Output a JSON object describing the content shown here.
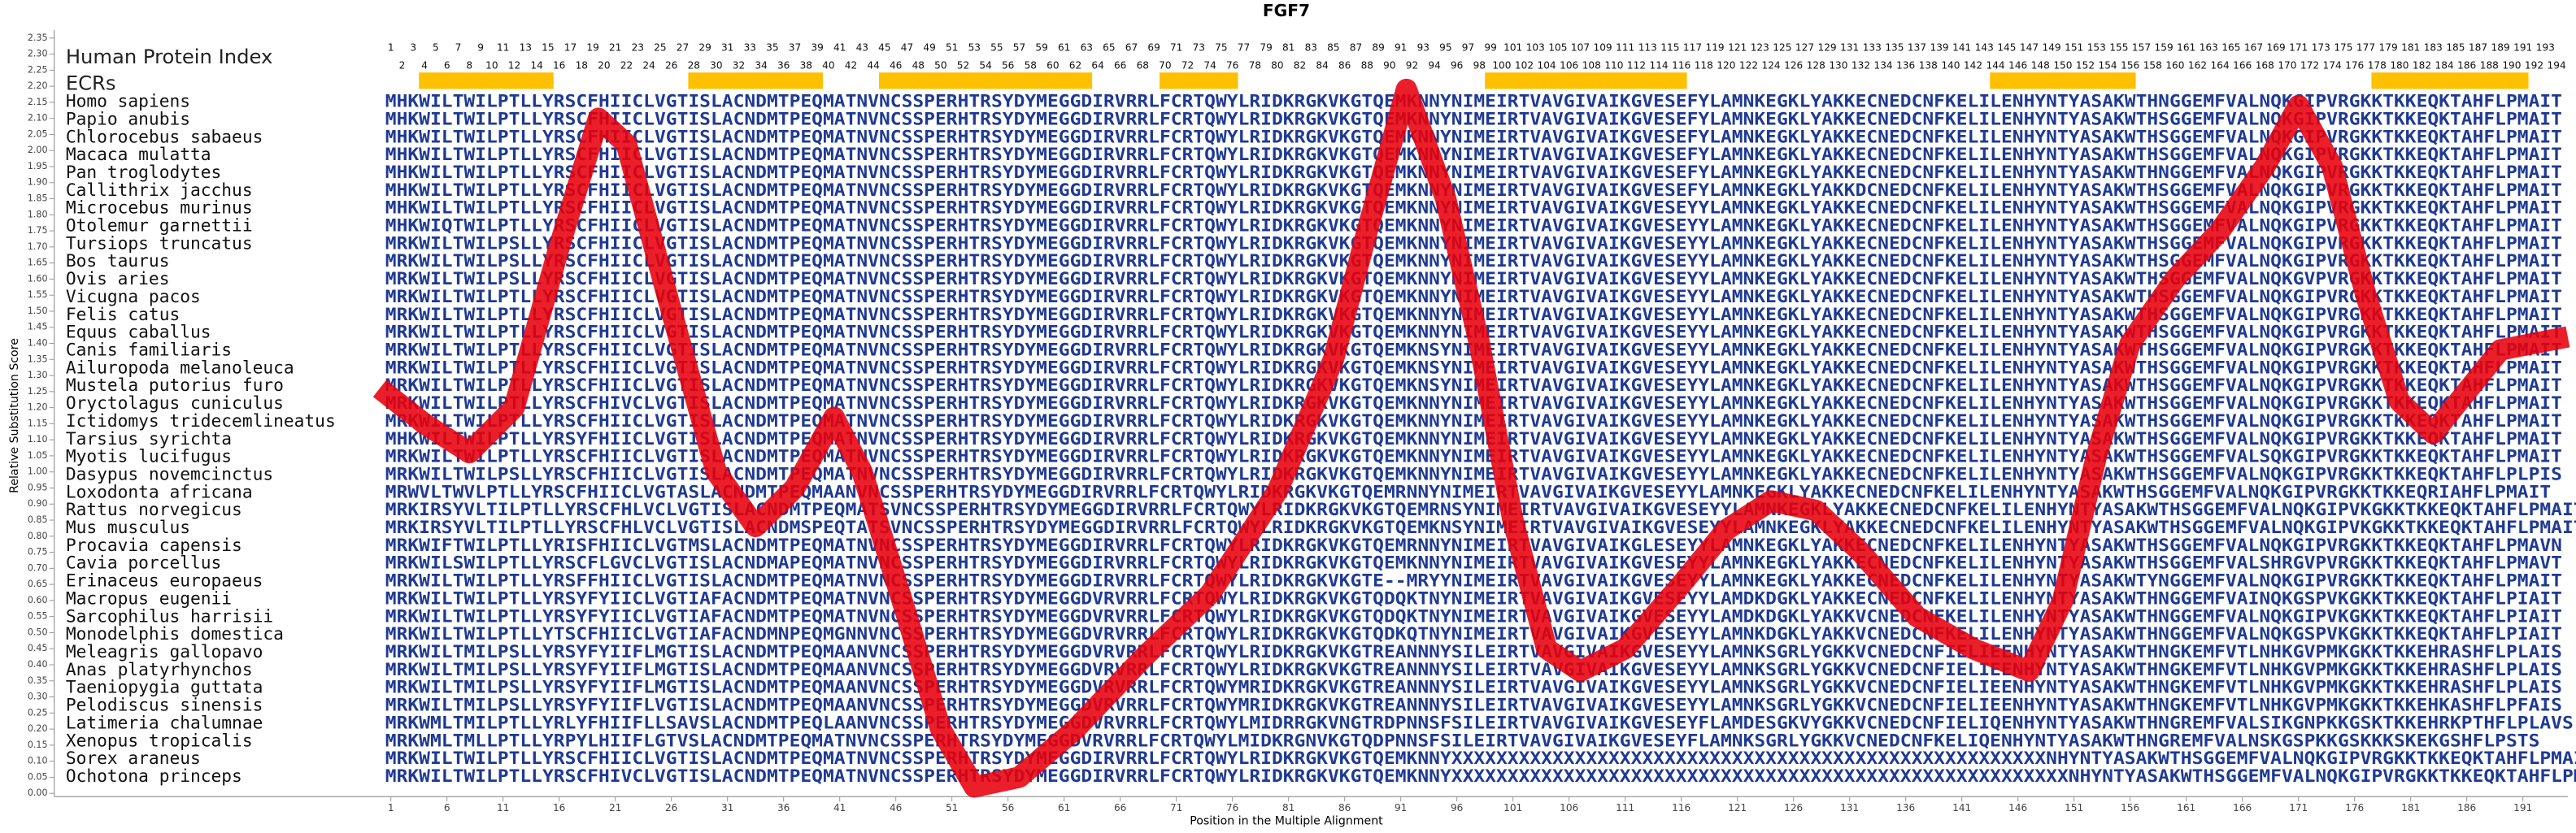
{
  "chart_data": {
    "type": "alignment-line",
    "title": "FGF7",
    "ylabel": "Relative Substitution Score",
    "xlabel": "Position in the Multiple Alignment",
    "index_label": "Human Protein Index",
    "ecr_label": "ECRs",
    "xlim": [
      -29,
      195
    ],
    "ylim": [
      0,
      2.35
    ],
    "xticks": [
      1,
      6,
      11,
      16,
      21,
      26,
      31,
      36,
      41,
      46,
      51,
      56,
      61,
      66,
      71,
      76,
      81,
      86,
      91,
      96,
      101,
      106,
      111,
      116,
      121,
      126,
      131,
      136,
      141,
      146,
      151,
      156,
      161,
      166,
      171,
      176,
      181,
      186,
      191
    ],
    "yticks": [
      {
        "value": 0,
        "label": "0.00"
      },
      0.05,
      {
        "value": 0.1,
        "label": "0.10"
      },
      0.15,
      {
        "value": 0.2,
        "label": "0.20"
      },
      0.25,
      {
        "value": 0.3,
        "label": "0.30"
      },
      0.35,
      {
        "value": 0.4,
        "label": "0.40"
      },
      0.45,
      {
        "value": 0.5,
        "label": "0.50"
      },
      0.55,
      {
        "value": 0.6,
        "label": "0.60"
      },
      0.65,
      {
        "value": 0.7,
        "label": "0.70"
      },
      0.75,
      {
        "value": 0.8,
        "label": "0.80"
      },
      0.85,
      {
        "value": 0.9,
        "label": "0.90"
      },
      0.95,
      {
        "value": 1,
        "label": "1.00"
      },
      1.05,
      {
        "value": 1.1,
        "label": "1.10"
      },
      1.15,
      {
        "value": 1.2,
        "label": "1.20"
      },
      1.25,
      {
        "value": 1.3,
        "label": "1.30"
      },
      1.35,
      {
        "value": 1.4,
        "label": "1.40"
      },
      1.45,
      {
        "value": 1.5,
        "label": "1.50"
      },
      1.55,
      {
        "value": 1.6,
        "label": "1.60"
      },
      1.65,
      {
        "value": 1.7,
        "label": "1.70"
      },
      1.75,
      {
        "value": 1.8,
        "label": "1.80"
      },
      1.85,
      {
        "value": 1.9,
        "label": "1.90"
      },
      1.95,
      {
        "value": 2,
        "label": "2.00"
      },
      2.05,
      {
        "value": 2.1,
        "label": "2.10"
      },
      2.15,
      {
        "value": 2.2,
        "label": "2.20"
      },
      2.25,
      {
        "value": 2.3,
        "label": "2.30"
      },
      2.35
    ],
    "protein_index": [
      1,
      2,
      3,
      4,
      5,
      6,
      7,
      8,
      9,
      10,
      11,
      12,
      13,
      14,
      15,
      16,
      17,
      18,
      19,
      20,
      21,
      22,
      23,
      24,
      25,
      26,
      27,
      28,
      29,
      30,
      31,
      32,
      33,
      34,
      35,
      36,
      37,
      38,
      39,
      40,
      41,
      42,
      43,
      44,
      45,
      46,
      47,
      48,
      49,
      50,
      51,
      52,
      53,
      54,
      55,
      56,
      57,
      58,
      59,
      60,
      61,
      62,
      63,
      64,
      65,
      66,
      67,
      68,
      69,
      70,
      71,
      72,
      73,
      74,
      75,
      76,
      77,
      78,
      79,
      80,
      81,
      82,
      83,
      84,
      85,
      86,
      87,
      88,
      89,
      90,
      91,
      92,
      93,
      94,
      95,
      96,
      97,
      98,
      99,
      100,
      101,
      102,
      103,
      104,
      105,
      106,
      107,
      108,
      109,
      110,
      111,
      112,
      113,
      114,
      115,
      116,
      117,
      118,
      119,
      120,
      121,
      122,
      123,
      124,
      125,
      126,
      127,
      128,
      129,
      130,
      131,
      132,
      133,
      134,
      135,
      136,
      137,
      138,
      139,
      140,
      141,
      142,
      143,
      144,
      145,
      146,
      147,
      148,
      149,
      150,
      151,
      152,
      153,
      154,
      155,
      156,
      157,
      158,
      159,
      160,
      161,
      162,
      163,
      164,
      165,
      166,
      167,
      168,
      169,
      170,
      171,
      172,
      173,
      174,
      175,
      176,
      177,
      178,
      179,
      180,
      181,
      182,
      183,
      184,
      185,
      186,
      187,
      188,
      189,
      190,
      191,
      192,
      193,
      194
    ],
    "ecrs": [
      [
        4,
        15
      ],
      [
        28,
        39
      ],
      [
        45,
        63
      ],
      [
        70,
        76
      ],
      [
        99,
        116
      ],
      [
        144,
        156
      ],
      [
        178,
        191
      ]
    ],
    "ecr_color": "#ffc000",
    "sequence_color": "#1f3a93",
    "curve": {
      "color": "#e8000b",
      "x": [
        0,
        4,
        8,
        12,
        16,
        19.5,
        22,
        26,
        30,
        33.5,
        37,
        40.5,
        43,
        47,
        50,
        53,
        57,
        62,
        68,
        74,
        80,
        85,
        88,
        91.5,
        95,
        98,
        101,
        104,
        107,
        111,
        116,
        120,
        124,
        128,
        132,
        137,
        142,
        147,
        150,
        153,
        156,
        160,
        164,
        168,
        171,
        174,
        177,
        180,
        183,
        186,
        189,
        195
      ],
      "values": [
        1.26,
        1.15,
        1.06,
        1.2,
        1.7,
        2.1,
        2.02,
        1.5,
        1,
        0.83,
        0.95,
        1.17,
        1,
        0.55,
        0.2,
        0.02,
        0.05,
        0.2,
        0.42,
        0.62,
        0.94,
        1.35,
        1.75,
        2.19,
        1.85,
        1.4,
        0.85,
        0.45,
        0.38,
        0.45,
        0.65,
        0.82,
        0.91,
        0.88,
        0.75,
        0.55,
        0.45,
        0.38,
        0.6,
        1.05,
        1.4,
        1.6,
        1.75,
        1.95,
        2.14,
        1.95,
        1.55,
        1.22,
        1.12,
        1.25,
        1.38,
        1.42
      ]
    },
    "alignment": [
      {
        "species": "Homo sapiens",
        "sequence": "MHKWILTWILPTLLYRSCFHIICLVGTISLACNDMTPEQMATNVNCSSPERHTRSYDYMEGGDIRVRRLFCRTQWYLRIDKRGKVKGTQEMKNNYNIMEIRTVAVGIVAIKGVESEFYLAMNKEGKLYAKKECNEDCNFKELILENHYNTYASAKWTHNGGEMFVALNQKGIPVRGKKTKKEQKTAHFLPMAIT"
      },
      {
        "species": "Papio anubis",
        "sequence": "MHKWILTWILPTLLYRSCFHIICLVGTISLACNDMTPEQMATNVNCSSPERHTRSYDYMEGGDIRVRRLFCRTQWYLRIDKRGKVKGTQEMKNNYNIMEIRTVAVGIVAIKGVESEFYLAMNKEGKLYAKKECNEDCNFKELILENHYNTYASAKWTHSGGEMFVALNQKGIPVRGKKTKKEQKTAHFLPMAIT"
      },
      {
        "species": "Chlorocebus sabaeus",
        "sequence": "MHKWILTWILPTLLYRSCFHIICLVGTISLACNDMTPEQMATNVNCSSPERHTRSYDYMEGGDIRVRRLFCRTQWYLRIDKRGKVKGTQEMKNNYNIMEIRTVAVGIVAIKGVESEFYLAMNKEGKLYAKKECNEDCNFKELILENHYNTYASAKWTHSGGEMFVALNQKGIPVRGKKTKKEQKTAHFLPMAIT"
      },
      {
        "species": "Macaca mulatta",
        "sequence": "MHKWILTWILPTLLYRSCFHIICLVGTISLACNDMTPEQMATNVNCSSPERHTRSYDYMEGGDIRVRRLFCRTQWYLRIDKRGKVKGTQEMKNNYNIMEIRTVAVGIVAIKGVESEFYLAMNKEGKLYAKKECNEDCNFKELILENHYNTYASAKWTHSGGEMFVALNQKGIPVRGKKTKKEQKTAHFLPMAIT"
      },
      {
        "species": "Pan troglodytes",
        "sequence": "MHKWILTWILPTLLYRSCFHIICLVGTISLACNDMTPEQMATNVNCSSPERHTRSYDYMEGGDIRVRRLFCRTQWYLRIDKRGKVKGTQEMKNNYNIMEIRTVAVGIVAIKGVESEFYLAMNKEGKLYAKKECNEDCNFKELILENHYNTYASAKWTHNGGEMFVALNQKGIPVRGKKTKKEQKTAHFLPMAIT"
      },
      {
        "species": "Callithrix jacchus",
        "sequence": "MHKWILTWILPTLLYRSCFHIICLVGTISLACNDMTPEQMATNVNCSSPERHTRSYDYMEGGDIRVRRLFCRTQWYLRIDKRGKVKGTQEMKNNYNIMEIRTVAVGIVAIKGVESEFYLAMNKEGKLYAKKDCNEDCNFKELILENHYNTYASAKWTHSGGEMFVALNQKGIPVRGKKTKKEQKTAHFLPMAIT"
      },
      {
        "species": "Microcebus murinus",
        "sequence": "MHKWILTWILPTLLYRSCFHIICLVGTISLACNDMTPEQMATNVNCSSPERHTRSYDYMEGGDIRVRRLFCRTQWYLRIDKRGKVKGTQEMKNNYNIMEIRTVAVGIVAIKGVESEYYLAMNKEGKLYAKKECNEDCNFKELILENHYNTYASAKWTHSGGEMFVALNQKGIPVRGKKTKKEQKTAHFLPMAIT"
      },
      {
        "species": "Otolemur garnettii",
        "sequence": "MHKWIQTWILPTLLYRSCFHIICLVGTISLACNDMTPEQMATNVNCSSPERHTRSYDYMEGGDIRVRRLFCRTQWYLRIDKRGKVKGTQEMKNNYNIMEIRTVAVGIVAIKGVESEYYLAMNKEGKLYAKKECNEDCNFKELILENHYNTYASAKWTHSGGEMFVALNQKGIPVRGKKTKKEQKTAHFLPMAIT"
      },
      {
        "species": "Tursiops truncatus",
        "sequence": "MRKWILTWILPSLLYRSCFHIICLVGTISLACNDMTPEQMATNVNCSSPERHTRSYDYMEGGDIRVRRLFCRTQWYLRIDKRGKVKGTQEMKNNYNIMEIRTVAVGIVAIKGVESEYYLAMNKEGKLYAKKECNEDCNFKELILENHYNTYASAKWTHSGGEMFVALNQKGIPVRGKKTKKEQKTAHFLPMAIT"
      },
      {
        "species": "Bos taurus",
        "sequence": "MRKWILTWILPSLLYRSCFHIICLVGTISLACNDMTPEQMATNVNCSSPERHTRSYDYMEGGDIRVRRLFCRTQWYLRIDKRGKVKGTQEMKNNYNIMEIRTVAVGIVAIKGVESEYYLAMNKEGKLYAKKECNEDCNFKELILENHYNTYASAKWTHSGGEMFVALNQKGIPVRGKKTKKEQKTAHFLPMAIT"
      },
      {
        "species": "Ovis aries",
        "sequence": "MRKWILTWILPSLLYRSCFHIICLVGTISLACNDMTPEQMATNVNCSSPERHTRSYDYMEGGDIRVRRLFCRTQWYLRIDKRGKVKGTQEMKNNYNIMEIRTVAVGIVAIKGVESEYYLAMNKEGKLYAKKECNEDCNFKELILENHYNTYASAKWTHSGGEMFVALNQKGVPVRGKKTKKEQKTAHFLPMAIT"
      },
      {
        "species": "Vicugna pacos",
        "sequence": "MRKWILTWILPTLLYRSCFHIICLVGTISLACNDMTPEQMATNVNCSSPERHTRSYDYMEGGDIRVRRLFCRTQWYLRIDKRGKVKGTQEMKNNYNIMEIRTVAVGIVAIKGVESEYYLAMNKEGKLYAKKECNEDCNFKELILENHYNTYASAKWTHSGGEMFVALNQKGIPVRGKKTKKEQKTAHFLPMAIT"
      },
      {
        "species": "Felis catus",
        "sequence": "MRKWILTWILPTLLYRSCFHIICLVGTISLACNDMTPEQMATNVNCSSPERHTRSYDYMEGGDIRVRRLFCRTQWYLRIDKRGKVKGTQEMKNNYNIMEIRTVAVGIVAIKGVESEYYLAMNKEGKLYAKKECNEDCNFKELILENHYNTYASAKWTHSGGEMFVALNQKGIPVRGKKTKKEQKTAHFLPMAIT"
      },
      {
        "species": "Equus caballus",
        "sequence": "MRKWILTWILPTLLYRSCFHIICLVGTISLACNDMTPEQMATNVNCSSPERHTRSYDYMEGGDIRVRRLFCRTQWYLRIDKRGKVKGTQEMKNNYNIMEIRTVAVGIVAIKGVESEYYLAMNKEGKLYAKKECNEDCNFKELILENHYNTYASAKWTHSGGEMFVALNQKGIPVRGKKTKKEQKTAHFLPMAIT"
      },
      {
        "species": "Canis familiaris",
        "sequence": "MRKWILTWILPTLLYRSCFHIICLVGTISLACNDMTPEQMATNVNCSSPERHTRSYDYMEGGDIRVRRLFCRTQWYLRIDKRGKVKGTQEMKNSYNIMEIRTVAVGIVAIKGVESEYYLAMNKEGKLYAKKECNEDCNFKELILENHYNTYASAKWTHSGGEMFVALNQKGIPVRGKKTKKEQKTAHFLPMAIT"
      },
      {
        "species": "Ailuropoda melanoleuca",
        "sequence": "MRKWILTWILPTLLYRSCFHIICLVGTISLACNDMTPEQMATNVNCSSPERHTRSYDYMEGGDIRVRRLFCRTQWYLRIDKRGKVKGTQEMKNSYNIMEIRTVAVGIVAIKGVESEYYLAMNKEGKLYAKKECNEDCNFKELILENHYNTYASAKWTHSGGEMFVALNQKGIPVRGKKTKKEQKTAHFLPMAIT"
      },
      {
        "species": "Mustela putorius furo",
        "sequence": "MRKWILTWILPTLLYRSCFHIICLVGTISLACNDMTPEQMATNVNCSSPERHTRSYDYMEGGDIRVRRLFCRTQWYLRIDKRGKVKGTQEMKNSYNIMEIRTVAVGIVAIKGVESEYYLAMNKEGKLYAKKECNEDCNFKELILENHYNTYASAKWTHSGGEMFVALNQKGIPVRGKKTKKEQKTAHFLPMAIT"
      },
      {
        "species": "Oryctolagus cuniculus",
        "sequence": "MRKWILTWILPTLLYRSCFHIVCLVGTISLACNDMTPEQMATNVNCSSPERHTRSYDYMEGGDIRVRRLFCRTQWYLRIDKRGKVKGTQEMKNNYNIMEIRTVAVGIVAIKGVESEYYLAMNKEGKLYAKKECNEDCNFKELILENHYNTYASAKWTHSGGEMFVALNQKGIPVRGKKTKKEQKTAHFLPMAIT"
      },
      {
        "species": "Ictidomys tridecemlineatus",
        "sequence": "MRKWILTWILPTLLYRSCFHIICLVGTISLACNDMTPEQMATNVNCSSPERHTRSYDYMEGGDIRVRRLFCRTQWYLRIDKRGKVKGTQEMKNNYNIMEIRTVAVGIVAIKGVESEYYLAMNKEGKLYAKKECNEDCNFKELILENHYNTYASAKWTHSGGEMFVALNQKGIPVRGKKTKKEQKTAHFLPMAIT"
      },
      {
        "species": "Tarsius syrichta",
        "sequence": "MHKWILTWILPTLLYRSYFHIICLVGTISLACNDMTPEQMATNVNCSSPERHTRSYDYMEGGDIRVRRLFCRTQWYLRIDKRGKVKGTQEMKNNYNIMEIRTVAVGIVAIKGVESEYYLAMNKEGKLYAKKECNEDCNFKELILENHYNTYASAKWTHSGGEMFVALNQKGIPVRGKKTKKEQKTAHFLPMAIT"
      },
      {
        "species": "Myotis lucifugus",
        "sequence": "MRKWILTWILPTLLYRSCFHIICLVGTISLACNDMTPEQMATNVNCSSPERHTRSYDYMEGGDIRVRRLFCRTQWYLRIDKRGKVKGTQEMKNNYNIMEIRTVAVGIVAIKGVESEYYLAMNKEGKLYAKKECNEDCNFKELILENHYNTYASAKWTHSGGEMFVALSQKGIPVRGKKTKKEQKTAHFLPMAIT"
      },
      {
        "species": "Dasypus novemcinctus",
        "sequence": "MRKWILTWILPSLLYRSCFHIICLVGTISLACNDMTPEQMATNVNCSSPERHTRSYDYMEGGDIRVRRLFCRTQWYLRIDKRGKVKGTQEMKNNYNIMEIRTVAVGIVAIKGVESEYYLAMNKEGKLYAKKECNEDCNFKELILENHYNTYASAKWTHSGGEMFVALNQKGIPVRGKKTKKEQKTAHFLPLPIS"
      },
      {
        "species": "Loxodonta africana",
        "sequence": "MRWVLTWVLPTLLYRSCFHIICLVGTASLACNDMTPEQMAANVNCSSPERHTRSYDYMEGGDIRVRRLFCRTQWYLRIDKRGKVKGTQEMRNNYNIMEIRTVAVGIVAIKGVESEYYLAMNKEGKLYAKKECNEDCNFKELILENHYNTYASAKWTHSGGEMFVALNQKGIPVRGKKTKKEQRIAHFLPMAIT"
      },
      {
        "species": "Rattus norvegicus",
        "sequence": "MRKIRSYVLTILPTLLYRSCFHLVCLVGTISLACNDMTPEQMATSVNCSSPERHTRSYDYMEGGDIRVRRLFCRTQWYLRIDKRGKVKGTQEMRNSYNIMEIRTVAVGIVAIKGVESEYYLAMNKEGKLYAKKECNEDCNFKELILENHYNTYASAKWTHSGGEMFVALNQKGIPVKGKKTKKEQKTAHFLPMAIT"
      },
      {
        "species": "Mus musculus",
        "sequence": "MRKIRSYVLTILPTLLYRSCFHLVCLVGTISLACNDMSPEQTATSVNCSSPERHTRSYDYMEGGDIRVRRLFCRTQWYLRIDKRGKVKGTQEMKNSYNIMEIRTVAVGIVAIKGVESEYYLAMNKEGKLYAKKECNEDCNFKELILENHYNTYASAKWTHSGGEMFVALNQKGIPVKGKKTKKEQKTAHFLPMAIT"
      },
      {
        "species": "Procavia capensis",
        "sequence": "MRKWIFTWILPTLLYRISFHIICLVGTMSLACNDMTPEQMATNVNCSSPERHTRSYDYMEGGDIRVRRLFCRTQWYLRIDKRGKVKGTQEMRNNYNIMEIRTVAVGIVAIKGLESEYYLAMNKEGKLYAKKECNEDCNFKELILENHYNTYASAKWTHSGGEMFVALNQKGIPVRGKKTKKEQKTAHFLPMAVN"
      },
      {
        "species": "Cavia porcellus",
        "sequence": "MRKWILSWILPTLLYRSCFLGVCLVGTISLACNDMAPEQMATNVNCSSPERHTRSYDYMEGGDIRVRRLFCRTQWYLRIDKRGKVKGTQEMKNNYNIMEIRTVAVGIVAIKGVESEYYLAMNKEGKLYAKKECNEDCNFKELILENHYNTYASAKWTHSGGEMFVALSHRGVPVRGKKTKKEQKTAHFLPMAVT"
      },
      {
        "species": "Erinaceus europaeus",
        "sequence": "MRKWILTWILPTLLYRSFFHIICLVGTISLACNDMTPEQMATNVNCSSPERHTRSYDYMEGGDIRVRRLFCRTQWYLRIDKRGKVKGTE--MRYYNIMEIRTVAVGIVAIKGVESEYYLAMNKEGKLYAKKECNEDCNFKELILENHYNTYASAKWTYNGGEMFVALNQKGIPVRGKKTKKEQKTAHFLPMAIT"
      },
      {
        "species": "Macropus eugenii",
        "sequence": "MRKWILTWILPTLLYRSYFYIICLVGTIAFACNDMTPEQMATNVNCSSPERHTRSYDYMEGGDVRVRRLFCRTQWYLRIDKRGKVKGTQDQKTNYNIMEIRTVAVGIVAIKGVESEYYLAMDKDGKLYAKKECNEDCNFKELILENHYNTYASAKWTHNGGEMFVAINQKGSPVKGKKTKKEQKTAHFLPIAIT"
      },
      {
        "species": "Sarcophilus harrisii",
        "sequence": "MRKWILTWILPTLLYRSYFYIICLVGTIAFACNDMTPEQMATNVNCSSPERHTRSYDYMEGGDVRVRRLFCRTQWYLRIDKRGKVKGTQDQKTNYNIMEIRTVAVGIVAIKGVESEYYLAMDKDGKLYAKKVCNEDCNFKELILENHYNTYASAKWTHNGGEMFVALNQKGIPVKGKKTKKEQKTAHFLPIAIT"
      },
      {
        "species": "Monodelphis domestica",
        "sequence": "MRKWILTWILPTLLYTSCFHIICLVGTIAFACNDMNPEQMGNNVNCSSPERHTRSYDYMEGGDVRVRRLFCRTQWYLRIDKRGKVKGTQDKQTNYNIMEIRTVAVGIVAIKGVESEYYLAMNKDGKLYAKKVCNEDCNFKELILENHYNTYASAKWTHNGGEMFVALNQKGSPVKGKKTKKEQKTAHFLPIAIT"
      },
      {
        "species": "Meleagris gallopavo",
        "sequence": "MRKWILTMILPSLLYRSYFYIIFLMGTISLACNDMTPEQMAANVNCSSPERHTRSYDYMEGGDVRVRRLFCRTQWYLRIDKRGKVKGTREANNNYSILEIRTVAVGIVAIKGVESEYYLAMNKSGRLYGKKVCNEDCNFIELIEENHYNTYASAKWTHNGKEMFVTLNHKGVPMKGKKTKKEHRASHFLPLAIS"
      },
      {
        "species": "Anas platyrhynchos",
        "sequence": "MRKWILTMILPSLLYRSYFYIIFLMGTISLACNDMTPEQMAANVNCSSPERHTRSYDYMEGGDVRVRRLFCRTQWYLRIDKRGKVKGTREANNNYSILEIRTVAVGIVAIKGVESEYYLAMNKSGRLYGKKVCNEDCNFIELIEENHYNTYASAKWTHNGKEMFVTLNHKGVPMKGKKTKKEHRASHFLPLAIS"
      },
      {
        "species": "Taeniopygia guttata",
        "sequence": "MRKWILTMILPSLLYRSYFYIIFLMGTISLACNDMTPEQMAANVNCSSPERHTRSYDYMEGGDVRVRRLFCRTQWYMRIDKRGKVKGTREANNNYSILEIRTVAVGIVAIKGVESEYYLAMNKSGRLYGKKVCNEDCNFIELIEENHYNTYASAKWTHNGKEMFVTLNHKGVPMKGKKTKKEHRASHFLPLAIS"
      },
      {
        "species": "Pelodiscus sinensis",
        "sequence": "MRKWILTMILPSLLYRSYFYIIFLVGTISLACNDMTPEQMAANVNCSSPERHTRSYDYMEGGDVRVRRLFCRTQWYMRIDKRGKVKGTREANNNYSILEIRTVAVGIVAIKGVESEYYLAMNKSGRLYGKKVCNEDCNFIELIEENHYNTYASAKWTHNGKEMFVTLNHKGVPMKGKKTKKEHKASHFLPFAIS"
      },
      {
        "species": "Latimeria chalumnae",
        "sequence": "MRKWMLTMILPTLLYRLYFHIIFLLSAVSLACNDMTPEQLAANVNCSSPERHTRSYDYMEGGDVRVRRLFCRTQWYLMIDRRGKVNGTRDPNNSFSILEIRTVAVGIVAIKGVESEYFLAMDESGKVYGKKVCNEDCNFIELIQENHYNTYASAKWTHNGREMFVALSIKGNPKKGSKTKKEHRKPTHFLPLAVS"
      },
      {
        "species": "Xenopus tropicalis",
        "sequence": "MRKWMLTMLLPTLLYRPYLHIIFLGTVSLACNDMTPEQMATNVNCSSPERHTRSYDYMEGGDVRVRRLFCRTQWYLMIDKRGNVKGTQDPNNSFSILEIRTVAVGIVAIKGVESEYFLAMNKSGRLYGKKVCNEDCNFKELIQENHYNTYASAKWTHNGREMFVALNSKGSPKKGSKKKSKEKGSHFLPSTS"
      },
      {
        "species": "Sorex araneus",
        "sequence": "MRKWILTWILPTLLYRSCFHIICLVGTISLACNDMTPEQMATNVNCSSPERHTRSYDYMEGGDIRVRRLFCRTQWYLRIDKRGKVKGTQEMKNNYXXXXXXXXXXXXXXXXXXXXXXXXXXXXXXXXXXXXXXXXXXXXXXXXXXXXXNHYNTYASAKWTHSGGEMFVALNQKGIPVRGKKTKKEQKTAHFLPMAIT"
      },
      {
        "species": "Ochotona princeps",
        "sequence": "MRKWILTWILPTLLYRSCFHIVCLVGTISLACNDMTPEQMATNVNCSSPERHTRSYDYMEGGDIRVRRLFCRTQWYLRIDKRGKVKGTQEMKNNYXXXXXXXXXXXXXXXXXXXXXXXXXXXXXXXXXXXXXXXXXXXXXXXXXXXXXXXNHYNTYASAKWTHSGGEMFVALNQKGIPVRGKKTKKEQKTAHFLPMAIT"
      }
    ]
  }
}
